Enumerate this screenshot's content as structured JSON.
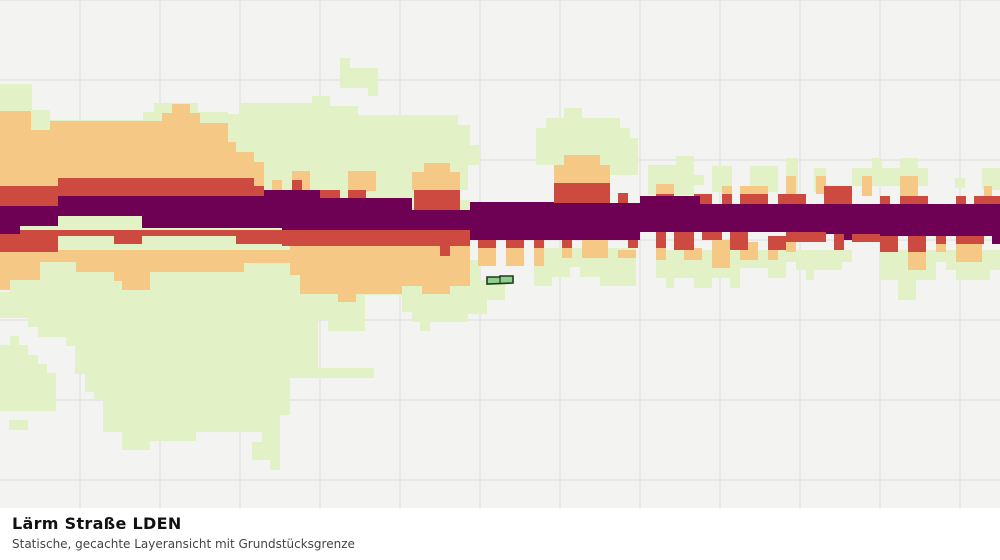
{
  "title": "Lärm Straße LDEN",
  "subtitle": "Statische, gecachte Layeransicht mit Grundstücksgrenze",
  "colors": {
    "background": "#f3f4f1",
    "grid": "#dcdedb",
    "band_light": "#e3f1c6",
    "band_orange": "#f5c886",
    "band_red": "#cd4a40",
    "band_core": "#6e0153",
    "parcel_fill": "#8fcf8a",
    "parcel_stroke": "#1c3a1f"
  },
  "layers": [
    {
      "name": "noise-band-light"
    },
    {
      "name": "noise-band-orange"
    },
    {
      "name": "noise-band-red"
    },
    {
      "name": "noise-band-core"
    },
    {
      "name": "parcel-boundary"
    }
  ]
}
